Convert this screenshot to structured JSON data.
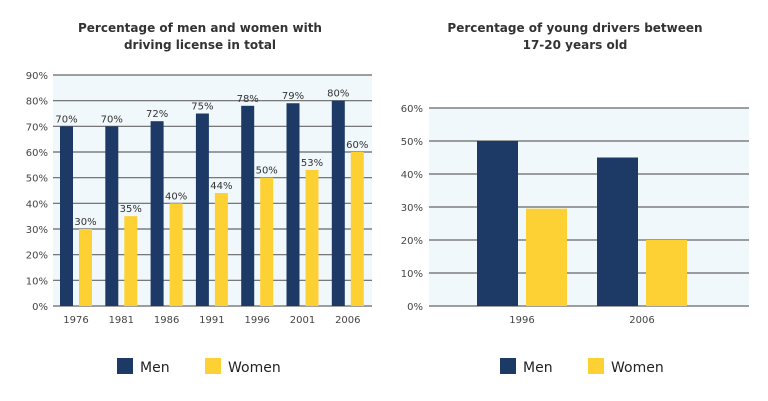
{
  "colors": {
    "men": "#1d3a66",
    "women": "#fdd133",
    "plot_bg": "#f1f8fb",
    "grid": "#666666"
  },
  "chart_data": [
    {
      "type": "bar",
      "title": [
        "Percentage of men and women with",
        "driving license in total"
      ],
      "categories": [
        "1976",
        "1981",
        "1986",
        "1991",
        "1996",
        "2001",
        "2006"
      ],
      "series": [
        {
          "name": "Men",
          "values": [
            70,
            70,
            72,
            75,
            78,
            79,
            80
          ],
          "labels": [
            "70%",
            "70%",
            "72%",
            "75%",
            "78%",
            "79%",
            "80%"
          ]
        },
        {
          "name": "Women",
          "values": [
            30,
            35,
            40,
            44,
            50,
            53,
            60
          ],
          "labels": [
            "30%",
            "35%",
            "40%",
            "44%",
            "50%",
            "53%",
            "60%"
          ]
        }
      ],
      "ylim": [
        0,
        90
      ],
      "yticks": [
        "0%",
        "10%",
        "20%",
        "30%",
        "40%",
        "50%",
        "60%",
        "70%",
        "80%",
        "90%"
      ],
      "grid": true,
      "legend": "bottom"
    },
    {
      "type": "bar",
      "title": [
        "Percentage of young drivers between",
        "17-20 years old"
      ],
      "categories": [
        "1996",
        "2006"
      ],
      "series": [
        {
          "name": "Men",
          "values": [
            50,
            45
          ]
        },
        {
          "name": "Women",
          "values": [
            29.5,
            20
          ]
        }
      ],
      "ylim": [
        0,
        60
      ],
      "yticks": [
        "0%",
        "10%",
        "20%",
        "30%",
        "40%",
        "50%",
        "60%"
      ],
      "grid": true,
      "legend": "bottom"
    }
  ]
}
